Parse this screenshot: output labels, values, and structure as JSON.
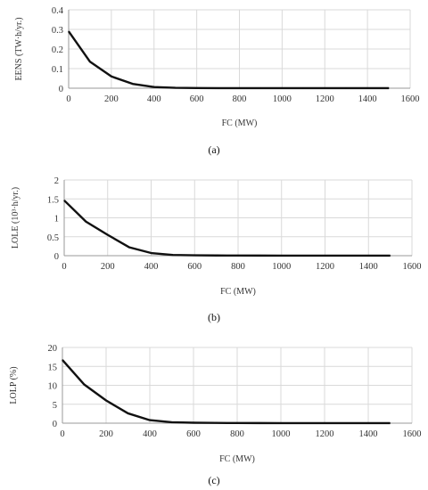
{
  "chart_data": [
    {
      "type": "line",
      "panel": "(a)",
      "xlabel": "FC (MW)",
      "ylabel": "EENS (TW·h/yr.)",
      "xlim": [
        0,
        1600
      ],
      "ylim": [
        0,
        0.4
      ],
      "xticks": [
        "0",
        "200",
        "400",
        "600",
        "800",
        "1000",
        "1200",
        "1400",
        "1600"
      ],
      "yticks": [
        "0",
        "0.1",
        "0.2",
        "0.3",
        "0.4"
      ],
      "grid": true,
      "x": [
        0,
        100,
        200,
        300,
        400,
        500,
        600,
        700,
        800,
        900,
        1000,
        1100,
        1200,
        1300,
        1400,
        1500
      ],
      "y": [
        0.29,
        0.135,
        0.06,
        0.022,
        0.006,
        0.002,
        0.001,
        0.0005,
        0.0003,
        0.0002,
        0.0001,
        0.0001,
        0.0001,
        0.0001,
        0.0001,
        0.0001
      ]
    },
    {
      "type": "line",
      "panel": "(b)",
      "xlabel": "FC (MW)",
      "ylabel": "LOLE (10³·h/yr.)",
      "xlim": [
        0,
        1600
      ],
      "ylim": [
        0,
        2
      ],
      "xticks": [
        "0",
        "200",
        "400",
        "600",
        "800",
        "1000",
        "1200",
        "1400",
        "1600"
      ],
      "yticks": [
        "0",
        "0.5",
        "1",
        "1.5",
        "2"
      ],
      "grid": true,
      "x": [
        0,
        100,
        200,
        300,
        400,
        500,
        600,
        700,
        800,
        900,
        1000,
        1100,
        1200,
        1300,
        1400,
        1500
      ],
      "y": [
        1.46,
        0.9,
        0.55,
        0.22,
        0.07,
        0.02,
        0.01,
        0.006,
        0.004,
        0.003,
        0.002,
        0.002,
        0.001,
        0.001,
        0.001,
        0.001
      ]
    },
    {
      "type": "line",
      "panel": "(c)",
      "xlabel": "FC (MW)",
      "ylabel": "LOLP (%)",
      "xlim": [
        0,
        1600
      ],
      "ylim": [
        0,
        20
      ],
      "xticks": [
        "0",
        "200",
        "400",
        "600",
        "800",
        "1000",
        "1200",
        "1400",
        "1600"
      ],
      "yticks": [
        "0",
        "5",
        "10",
        "15",
        "20"
      ],
      "grid": true,
      "x": [
        0,
        100,
        200,
        300,
        400,
        500,
        600,
        700,
        800,
        900,
        1000,
        1100,
        1200,
        1300,
        1400,
        1500
      ],
      "y": [
        16.7,
        10.2,
        6.0,
        2.6,
        0.8,
        0.25,
        0.12,
        0.07,
        0.04,
        0.03,
        0.02,
        0.02,
        0.01,
        0.01,
        0.01,
        0.01
      ]
    }
  ]
}
